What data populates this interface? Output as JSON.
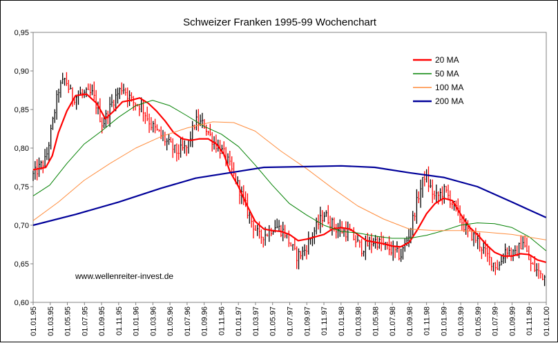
{
  "chart_data": {
    "type": "line",
    "title": "Schweizer Franken 1995-99 Wochenchart",
    "watermark": "www.wellenreiter-invest.de",
    "ylim": [
      0.6,
      0.95
    ],
    "yticks": [
      0.6,
      0.65,
      0.7,
      0.75,
      0.8,
      0.85,
      0.9,
      0.95
    ],
    "ytick_labels": [
      "0,60",
      "0,65",
      "0,70",
      "0,75",
      "0,80",
      "0,85",
      "0,90",
      "0,95"
    ],
    "xlim": [
      "1995-01-01",
      "2000-01-01"
    ],
    "x_tick_labels": [
      "01.01.95",
      "01.03.95",
      "01.05.95",
      "01.07.95",
      "01.09.95",
      "01.11.95",
      "01.01.96",
      "01.03.96",
      "01.05.96",
      "01.07.96",
      "01.09.96",
      "01.11.96",
      "01.01.97",
      "01.03.97",
      "01.05.97",
      "01.07.97",
      "01.09.97",
      "01.11.97",
      "01.01.98",
      "01.03.98",
      "01.05.98",
      "01.07.98",
      "01.09.98",
      "01.11.98",
      "01.01.99",
      "01.03.99",
      "01.05.99",
      "01.07.99",
      "01.09.99",
      "01.11.99",
      "01.01.00"
    ],
    "legend_position": "top-right",
    "price_color_up": "#000000",
    "price_color_down": "#ff0000",
    "price_keypoints": [
      {
        "date": "1995-01-01",
        "value": 0.765
      },
      {
        "date": "1995-02-15",
        "value": 0.785
      },
      {
        "date": "1995-03-10",
        "value": 0.83
      },
      {
        "date": "1995-04-01",
        "value": 0.875
      },
      {
        "date": "1995-04-25",
        "value": 0.89
      },
      {
        "date": "1995-05-20",
        "value": 0.865
      },
      {
        "date": "1995-06-20",
        "value": 0.87
      },
      {
        "date": "1995-08-01",
        "value": 0.87
      },
      {
        "date": "1995-09-05",
        "value": 0.83
      },
      {
        "date": "1995-10-10",
        "value": 0.86
      },
      {
        "date": "1995-11-15",
        "value": 0.88
      },
      {
        "date": "1995-12-20",
        "value": 0.86
      },
      {
        "date": "1996-01-20",
        "value": 0.855
      },
      {
        "date": "1996-02-25",
        "value": 0.83
      },
      {
        "date": "1996-04-15",
        "value": 0.81
      },
      {
        "date": "1996-05-25",
        "value": 0.795
      },
      {
        "date": "1996-07-01",
        "value": 0.8
      },
      {
        "date": "1996-08-01",
        "value": 0.835
      },
      {
        "date": "1996-09-01",
        "value": 0.83
      },
      {
        "date": "1996-10-01",
        "value": 0.81
      },
      {
        "date": "1996-11-15",
        "value": 0.79
      },
      {
        "date": "1997-01-01",
        "value": 0.75
      },
      {
        "date": "1997-02-10",
        "value": 0.71
      },
      {
        "date": "1997-03-15",
        "value": 0.685
      },
      {
        "date": "1997-04-15",
        "value": 0.69
      },
      {
        "date": "1997-05-10",
        "value": 0.7
      },
      {
        "date": "1997-06-15",
        "value": 0.69
      },
      {
        "date": "1997-07-25",
        "value": 0.66
      },
      {
        "date": "1997-08-20",
        "value": 0.665
      },
      {
        "date": "1997-10-01",
        "value": 0.695
      },
      {
        "date": "1997-11-01",
        "value": 0.715
      },
      {
        "date": "1997-12-15",
        "value": 0.695
      },
      {
        "date": "1998-02-01",
        "value": 0.69
      },
      {
        "date": "1998-03-15",
        "value": 0.67
      },
      {
        "date": "1998-05-01",
        "value": 0.68
      },
      {
        "date": "1998-06-20",
        "value": 0.67
      },
      {
        "date": "1998-08-01",
        "value": 0.66
      },
      {
        "date": "1998-09-01",
        "value": 0.69
      },
      {
        "date": "1998-10-01",
        "value": 0.735
      },
      {
        "date": "1998-10-25",
        "value": 0.765
      },
      {
        "date": "1998-12-01",
        "value": 0.735
      },
      {
        "date": "1999-01-05",
        "value": 0.745
      },
      {
        "date": "1999-02-15",
        "value": 0.72
      },
      {
        "date": "1999-03-20",
        "value": 0.695
      },
      {
        "date": "1999-05-01",
        "value": 0.68
      },
      {
        "date": "1999-06-15",
        "value": 0.655
      },
      {
        "date": "1999-07-15",
        "value": 0.645
      },
      {
        "date": "1999-08-10",
        "value": 0.67
      },
      {
        "date": "1999-09-10",
        "value": 0.66
      },
      {
        "date": "1999-10-10",
        "value": 0.68
      },
      {
        "date": "1999-11-05",
        "value": 0.65
      },
      {
        "date": "1999-12-01",
        "value": 0.64
      },
      {
        "date": "1999-12-31",
        "value": 0.632
      }
    ],
    "series": [
      {
        "name": "20 MA",
        "color": "#ff0000",
        "width": 2.2,
        "points": [
          [
            "1995-01-01",
            0.772
          ],
          [
            "1995-02-15",
            0.775
          ],
          [
            "1995-03-10",
            0.79
          ],
          [
            "1995-04-01",
            0.82
          ],
          [
            "1995-05-01",
            0.848
          ],
          [
            "1995-06-01",
            0.868
          ],
          [
            "1995-07-10",
            0.87
          ],
          [
            "1995-08-15",
            0.858
          ],
          [
            "1995-09-15",
            0.838
          ],
          [
            "1995-10-15",
            0.848
          ],
          [
            "1995-11-15",
            0.86
          ],
          [
            "1995-12-15",
            0.862
          ],
          [
            "1996-01-15",
            0.865
          ],
          [
            "1996-02-15",
            0.858
          ],
          [
            "1996-03-15",
            0.848
          ],
          [
            "1996-04-15",
            0.835
          ],
          [
            "1996-05-15",
            0.82
          ],
          [
            "1996-06-15",
            0.812
          ],
          [
            "1996-07-15",
            0.81
          ],
          [
            "1996-08-15",
            0.812
          ],
          [
            "1996-09-15",
            0.812
          ],
          [
            "1996-10-15",
            0.805
          ],
          [
            "1996-11-10",
            0.792
          ],
          [
            "1996-12-01",
            0.77
          ],
          [
            "1997-01-01",
            0.75
          ],
          [
            "1997-02-01",
            0.725
          ],
          [
            "1997-03-01",
            0.705
          ],
          [
            "1997-04-01",
            0.695
          ],
          [
            "1997-05-01",
            0.693
          ],
          [
            "1997-06-01",
            0.692
          ],
          [
            "1997-07-01",
            0.688
          ],
          [
            "1997-08-01",
            0.68
          ],
          [
            "1997-09-01",
            0.682
          ],
          [
            "1997-10-01",
            0.685
          ],
          [
            "1997-11-01",
            0.688
          ],
          [
            "1997-12-01",
            0.695
          ],
          [
            "1998-01-01",
            0.697
          ],
          [
            "1998-02-01",
            0.695
          ],
          [
            "1998-03-01",
            0.688
          ],
          [
            "1998-04-01",
            0.68
          ],
          [
            "1998-05-01",
            0.678
          ],
          [
            "1998-06-01",
            0.676
          ],
          [
            "1998-07-01",
            0.673
          ],
          [
            "1998-08-01",
            0.672
          ],
          [
            "1998-09-01",
            0.678
          ],
          [
            "1998-10-01",
            0.695
          ],
          [
            "1998-11-01",
            0.715
          ],
          [
            "1998-12-01",
            0.728
          ],
          [
            "1999-01-01",
            0.735
          ],
          [
            "1999-02-01",
            0.732
          ],
          [
            "1999-03-01",
            0.715
          ],
          [
            "1999-04-01",
            0.698
          ],
          [
            "1999-05-01",
            0.688
          ],
          [
            "1999-06-01",
            0.675
          ],
          [
            "1999-07-01",
            0.665
          ],
          [
            "1999-08-01",
            0.66
          ],
          [
            "1999-09-01",
            0.66
          ],
          [
            "1999-10-01",
            0.663
          ],
          [
            "1999-11-01",
            0.662
          ],
          [
            "1999-12-01",
            0.655
          ],
          [
            "1999-12-31",
            0.652
          ]
        ]
      },
      {
        "name": "50 MA",
        "color": "#008000",
        "width": 1,
        "points": [
          [
            "1995-01-01",
            0.738
          ],
          [
            "1995-03-01",
            0.752
          ],
          [
            "1995-05-01",
            0.78
          ],
          [
            "1995-07-01",
            0.805
          ],
          [
            "1995-09-01",
            0.822
          ],
          [
            "1995-11-01",
            0.84
          ],
          [
            "1996-01-01",
            0.855
          ],
          [
            "1996-03-01",
            0.862
          ],
          [
            "1996-05-01",
            0.855
          ],
          [
            "1996-07-01",
            0.842
          ],
          [
            "1996-09-01",
            0.828
          ],
          [
            "1996-11-01",
            0.818
          ],
          [
            "1997-01-01",
            0.802
          ],
          [
            "1997-03-01",
            0.778
          ],
          [
            "1997-05-01",
            0.752
          ],
          [
            "1997-07-01",
            0.728
          ],
          [
            "1997-09-01",
            0.713
          ],
          [
            "1997-11-01",
            0.7
          ],
          [
            "1998-01-01",
            0.692
          ],
          [
            "1998-03-01",
            0.69
          ],
          [
            "1998-05-01",
            0.686
          ],
          [
            "1998-07-01",
            0.683
          ],
          [
            "1998-09-01",
            0.683
          ],
          [
            "1998-11-01",
            0.687
          ],
          [
            "1999-01-01",
            0.693
          ],
          [
            "1999-03-01",
            0.7
          ],
          [
            "1999-05-01",
            0.703
          ],
          [
            "1999-07-01",
            0.702
          ],
          [
            "1999-09-01",
            0.697
          ],
          [
            "1999-11-01",
            0.685
          ],
          [
            "1999-12-31",
            0.667
          ]
        ]
      },
      {
        "name": "100 MA",
        "color": "#ff8c3c",
        "width": 1,
        "points": [
          [
            "1995-01-01",
            0.706
          ],
          [
            "1995-04-01",
            0.73
          ],
          [
            "1995-07-01",
            0.758
          ],
          [
            "1995-10-01",
            0.78
          ],
          [
            "1996-01-01",
            0.8
          ],
          [
            "1996-04-01",
            0.815
          ],
          [
            "1996-07-01",
            0.826
          ],
          [
            "1996-10-01",
            0.834
          ],
          [
            "1996-12-15",
            0.833
          ],
          [
            "1997-03-01",
            0.822
          ],
          [
            "1997-06-01",
            0.796
          ],
          [
            "1997-09-01",
            0.773
          ],
          [
            "1997-12-01",
            0.748
          ],
          [
            "1998-03-01",
            0.725
          ],
          [
            "1998-06-01",
            0.708
          ],
          [
            "1998-09-01",
            0.695
          ],
          [
            "1998-12-01",
            0.693
          ],
          [
            "1999-03-01",
            0.693
          ],
          [
            "1999-06-01",
            0.691
          ],
          [
            "1999-09-01",
            0.688
          ],
          [
            "1999-12-31",
            0.681
          ]
        ]
      },
      {
        "name": "200 MA",
        "color": "#000099",
        "width": 2.2,
        "points": [
          [
            "1995-01-01",
            0.7
          ],
          [
            "1995-06-01",
            0.714
          ],
          [
            "1995-11-01",
            0.73
          ],
          [
            "1996-04-01",
            0.748
          ],
          [
            "1996-08-01",
            0.761
          ],
          [
            "1996-12-01",
            0.768
          ],
          [
            "1997-04-01",
            0.775
          ],
          [
            "1997-09-01",
            0.776
          ],
          [
            "1998-01-01",
            0.777
          ],
          [
            "1998-05-01",
            0.775
          ],
          [
            "1998-09-01",
            0.768
          ],
          [
            "1999-01-01",
            0.762
          ],
          [
            "1999-05-01",
            0.75
          ],
          [
            "1999-09-01",
            0.73
          ],
          [
            "1999-12-31",
            0.71
          ]
        ]
      }
    ]
  }
}
